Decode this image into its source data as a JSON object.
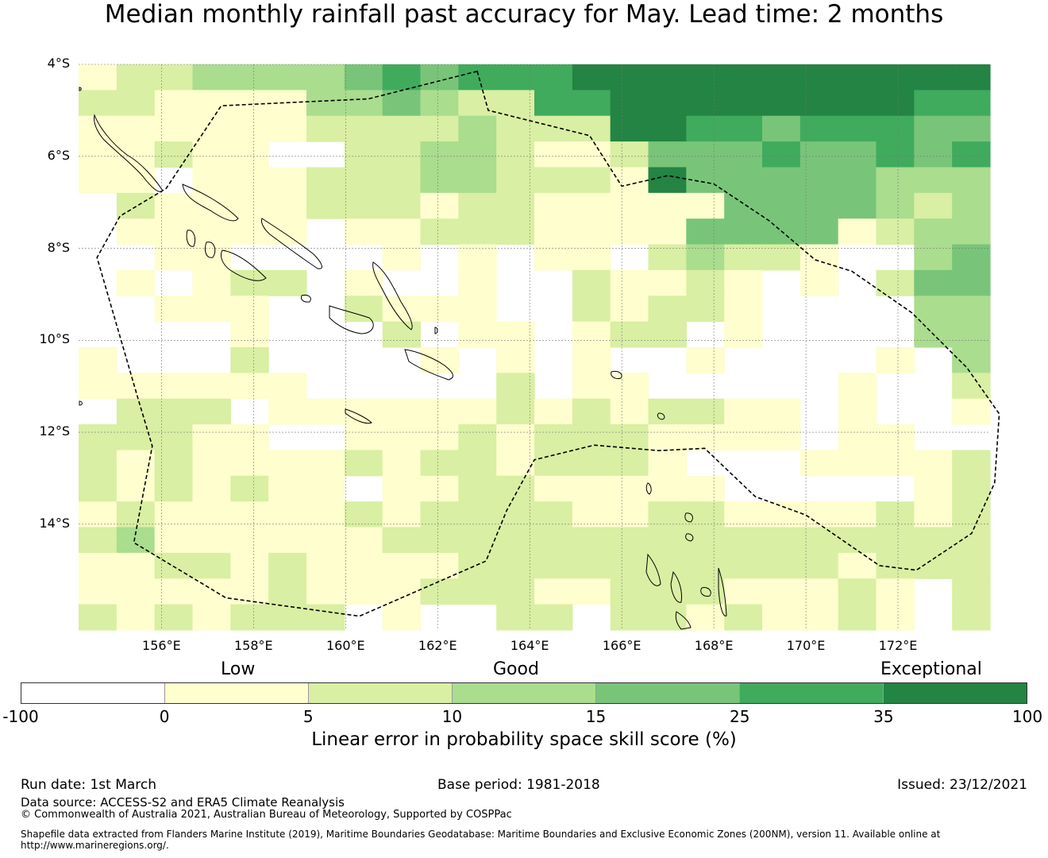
{
  "title": "Median monthly rainfall past accuracy for May. Lead time: 2 months",
  "map": {
    "lon_range": [
      154.2,
      174.0
    ],
    "lat_range": [
      -16.3,
      -4.0
    ],
    "lat_ticks": [
      {
        "value": -4,
        "label": "4°S"
      },
      {
        "value": -6,
        "label": "6°S"
      },
      {
        "value": -8,
        "label": "8°S"
      },
      {
        "value": -10,
        "label": "10°S"
      },
      {
        "value": -12,
        "label": "12°S"
      },
      {
        "value": -14,
        "label": "14°S"
      }
    ],
    "lon_ticks": [
      {
        "value": 156,
        "label": "156°E"
      },
      {
        "value": 158,
        "label": "158°E"
      },
      {
        "value": 160,
        "label": "160°E"
      },
      {
        "value": 162,
        "label": "162°E"
      },
      {
        "value": 164,
        "label": "164°E"
      },
      {
        "value": 166,
        "label": "166°E"
      },
      {
        "value": 168,
        "label": "168°E"
      },
      {
        "value": 170,
        "label": "170°E"
      },
      {
        "value": 172,
        "label": "172°E"
      }
    ],
    "grid_cell_deg": [
      0.833,
      0.556
    ],
    "grid_cols": 24,
    "grid_rows": 22,
    "skill_class_grid": [
      "122333345455566666666666",
      "221111334322556666666655",
      "111111222232226655455544",
      "112110022332112444544545",
      "110111222332221644444333",
      "021111222122111114444323",
      "011111011222111144441233",
      "001100001010110232210034",
      "010122010010021121010244",
      "001110021110021221000033",
      "000010002011012201000033",
      "100020000101010010000103",
      "111111000002011000001002",
      "022201111112121221101001",
      "222110011121222111101100",
      "212111121221222100011112",
      "212121101122111110000012",
      "121111121222211221111212",
      "231111112222222222222222",
      "112212111122222222221222",
      "111112111222112221112102",
      "212122201002202212112102"
    ],
    "eez_boundary_lonlat": [
      [
        162.86,
        -4.15
      ],
      [
        163.1,
        -5.0
      ],
      [
        165.3,
        -5.55
      ],
      [
        166.0,
        -6.65
      ],
      [
        167.0,
        -6.42
      ],
      [
        168.0,
        -6.6
      ],
      [
        169.2,
        -7.4
      ],
      [
        170.2,
        -8.25
      ],
      [
        171.0,
        -8.5
      ],
      [
        172.3,
        -9.4
      ],
      [
        173.5,
        -10.6
      ],
      [
        174.2,
        -11.6
      ],
      [
        174.1,
        -13.1
      ],
      [
        173.6,
        -14.2
      ],
      [
        172.4,
        -15.0
      ],
      [
        171.6,
        -14.9
      ],
      [
        170.0,
        -13.8
      ],
      [
        168.9,
        -13.4
      ],
      [
        167.8,
        -12.35
      ],
      [
        166.8,
        -12.4
      ],
      [
        165.4,
        -12.28
      ],
      [
        164.1,
        -12.6
      ],
      [
        163.5,
        -13.7
      ],
      [
        163.05,
        -14.8
      ],
      [
        160.3,
        -16.0
      ],
      [
        157.4,
        -15.6
      ],
      [
        155.4,
        -14.4
      ],
      [
        155.8,
        -12.3
      ],
      [
        155.5,
        -11.3
      ],
      [
        154.6,
        -8.2
      ],
      [
        155.1,
        -7.3
      ],
      [
        156.1,
        -6.7
      ],
      [
        157.3,
        -4.9
      ],
      [
        160.5,
        -4.75
      ]
    ]
  },
  "legend": {
    "category_labels": {
      "low": "Low",
      "good": "Good",
      "exceptional": "Exceptional"
    },
    "colors": [
      "#ffffff",
      "#fefece",
      "#d9efa3",
      "#aadd8e",
      "#78c579",
      "#40ab5d",
      "#238443"
    ],
    "ticks": [
      "-100",
      "0",
      "5",
      "10",
      "15",
      "25",
      "35",
      "100"
    ],
    "label": "Linear error in probability space skill score (%)"
  },
  "footer": {
    "run_date": "Run date: 1st March",
    "base_period": "Base period: 1981-2018",
    "issued": "Issued: 23/12/2021",
    "data_source": "Data source: ACCESS-S2 and ERA5 Climate Reanalysis",
    "copyright": "© Commonwealth of Australia 2021, Australian Bureau of Meteorology, Supported by COSPPac",
    "shapefile_line1": "Shapefile data extracted from Flanders Marine Institute (2019), Maritime Boundaries Geodatabase: Maritime Boundaries and Exclusive Economic Zones (200NM), version 11. Available online at",
    "shapefile_line2": "http://www.marineregions.org/."
  }
}
